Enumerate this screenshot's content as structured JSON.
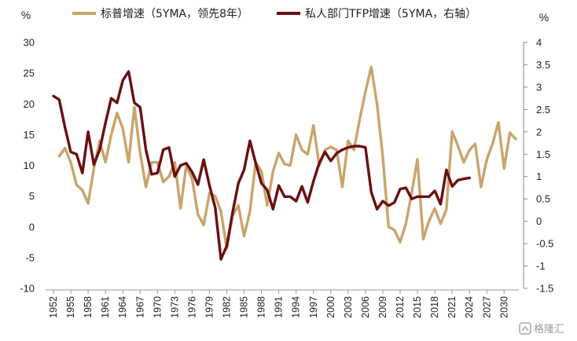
{
  "chart_data": {
    "type": "line",
    "left_axis": {
      "unit": "%",
      "ylim": [
        -10,
        30
      ],
      "ticks": [
        30,
        25,
        20,
        15,
        10,
        5,
        0,
        -5,
        -10
      ]
    },
    "right_axis": {
      "unit": "%",
      "ylim": [
        -1.5,
        4
      ],
      "ticks": [
        4,
        3.5,
        3,
        2.5,
        2,
        1.5,
        1,
        0.5,
        0,
        -0.5,
        -1,
        -1.5
      ],
      "tick_labels": [
        "4",
        "3.5",
        "3",
        "2.5",
        "2",
        "1.5",
        "1",
        "0.5",
        "0",
        "-0.5",
        "-1",
        "-1.5"
      ]
    },
    "xlim": [
      1952,
      2032
    ],
    "x_ticks": [
      1952,
      1955,
      1958,
      1961,
      1964,
      1967,
      1970,
      1973,
      1976,
      1979,
      1982,
      1985,
      1988,
      1991,
      1994,
      1997,
      2000,
      2003,
      2006,
      2009,
      2012,
      2015,
      2018,
      2021,
      2024,
      2027,
      2030
    ],
    "legend_position": "top",
    "grid": false,
    "series": [
      {
        "name": "标普增速（5YMA，领先8年）",
        "axis": "left",
        "color": "#C9A46B",
        "points": [
          [
            1953,
            11.5
          ],
          [
            1954,
            12.8
          ],
          [
            1955,
            10.5
          ],
          [
            1956,
            6.8
          ],
          [
            1957,
            6.0
          ],
          [
            1958,
            3.8
          ],
          [
            1959,
            9.5
          ],
          [
            1960,
            14.0
          ],
          [
            1961,
            10.5
          ],
          [
            1962,
            15.0
          ],
          [
            1963,
            18.5
          ],
          [
            1964,
            16.0
          ],
          [
            1965,
            10.5
          ],
          [
            1966,
            19.5
          ],
          [
            1967,
            12.0
          ],
          [
            1968,
            6.5
          ],
          [
            1969,
            10.5
          ],
          [
            1970,
            10.5
          ],
          [
            1971,
            7.3
          ],
          [
            1972,
            8.2
          ],
          [
            1973,
            10.5
          ],
          [
            1974,
            3.0
          ],
          [
            1975,
            10.0
          ],
          [
            1976,
            7.8
          ],
          [
            1977,
            2.0
          ],
          [
            1978,
            0.3
          ],
          [
            1979,
            5.5
          ],
          [
            1980,
            5.0
          ],
          [
            1981,
            2.5
          ],
          [
            1982,
            -3.5
          ],
          [
            1983,
            1.8
          ],
          [
            1984,
            3.5
          ],
          [
            1985,
            -1.5
          ],
          [
            1986,
            2.5
          ],
          [
            1987,
            10.5
          ],
          [
            1988,
            9.0
          ],
          [
            1989,
            3.5
          ],
          [
            1990,
            9.0
          ],
          [
            1991,
            12.0
          ],
          [
            1992,
            10.2
          ],
          [
            1993,
            10.0
          ],
          [
            1994,
            15.0
          ],
          [
            1995,
            12.5
          ],
          [
            1996,
            11.8
          ],
          [
            1997,
            16.5
          ],
          [
            1998,
            10.0
          ],
          [
            1999,
            12.5
          ],
          [
            2000,
            13.0
          ],
          [
            2001,
            12.5
          ],
          [
            2002,
            6.5
          ],
          [
            2003,
            14.0
          ],
          [
            2004,
            12.5
          ],
          [
            2005,
            17.5
          ],
          [
            2006,
            22.0
          ],
          [
            2007,
            26.0
          ],
          [
            2008,
            20.0
          ],
          [
            2009,
            11.5
          ],
          [
            2010,
            0.0
          ],
          [
            2011,
            -0.5
          ],
          [
            2012,
            -2.5
          ],
          [
            2013,
            0.5
          ],
          [
            2014,
            5.5
          ],
          [
            2015,
            11.0
          ],
          [
            2016,
            -2.0
          ],
          [
            2017,
            1.0
          ],
          [
            2018,
            3.0
          ],
          [
            2019,
            0.5
          ],
          [
            2020,
            2.8
          ],
          [
            2021,
            15.5
          ],
          [
            2022,
            13.2
          ],
          [
            2023,
            10.5
          ],
          [
            2024,
            12.5
          ],
          [
            2025,
            13.5
          ],
          [
            2026,
            6.5
          ],
          [
            2027,
            11.0
          ],
          [
            2028,
            13.5
          ],
          [
            2029,
            17.0
          ],
          [
            2030,
            9.5
          ],
          [
            2031,
            15.3
          ],
          [
            2032,
            14.3
          ]
        ]
      },
      {
        "name": "私人部门TFP增速（5YMA，右轴）",
        "axis": "right",
        "color": "#6B0E10",
        "points": [
          [
            1952,
            2.8
          ],
          [
            1953,
            2.72
          ],
          [
            1954,
            2.1
          ],
          [
            1955,
            1.55
          ],
          [
            1956,
            1.5
          ],
          [
            1957,
            1.08
          ],
          [
            1958,
            2.0
          ],
          [
            1959,
            1.27
          ],
          [
            1960,
            1.6
          ],
          [
            1961,
            2.2
          ],
          [
            1962,
            2.75
          ],
          [
            1963,
            2.65
          ],
          [
            1964,
            3.15
          ],
          [
            1965,
            3.35
          ],
          [
            1966,
            2.65
          ],
          [
            1967,
            2.55
          ],
          [
            1968,
            1.6
          ],
          [
            1969,
            1.05
          ],
          [
            1970,
            1.08
          ],
          [
            1971,
            1.6
          ],
          [
            1972,
            1.65
          ],
          [
            1973,
            1.0
          ],
          [
            1974,
            1.25
          ],
          [
            1975,
            1.3
          ],
          [
            1976,
            1.1
          ],
          [
            1977,
            0.82
          ],
          [
            1978,
            1.38
          ],
          [
            1979,
            0.8
          ],
          [
            1980,
            0.3
          ],
          [
            1981,
            -0.85
          ],
          [
            1982,
            -0.55
          ],
          [
            1983,
            0.2
          ],
          [
            1984,
            0.85
          ],
          [
            1985,
            1.15
          ],
          [
            1986,
            1.8
          ],
          [
            1987,
            1.3
          ],
          [
            1988,
            0.85
          ],
          [
            1989,
            0.7
          ],
          [
            1990,
            0.27
          ],
          [
            1991,
            0.8
          ],
          [
            1992,
            0.55
          ],
          [
            1993,
            0.55
          ],
          [
            1994,
            0.45
          ],
          [
            1995,
            0.78
          ],
          [
            1996,
            0.42
          ],
          [
            1997,
            0.9
          ],
          [
            1998,
            1.3
          ],
          [
            1999,
            1.55
          ],
          [
            2000,
            1.35
          ],
          [
            2001,
            1.52
          ],
          [
            2002,
            1.6
          ],
          [
            2003,
            1.65
          ],
          [
            2004,
            1.68
          ],
          [
            2005,
            1.68
          ],
          [
            2006,
            1.65
          ],
          [
            2007,
            0.65
          ],
          [
            2008,
            0.27
          ],
          [
            2009,
            0.45
          ],
          [
            2010,
            0.35
          ],
          [
            2011,
            0.42
          ],
          [
            2012,
            0.72
          ],
          [
            2013,
            0.75
          ],
          [
            2014,
            0.5
          ],
          [
            2015,
            0.55
          ],
          [
            2016,
            0.55
          ],
          [
            2017,
            0.55
          ],
          [
            2018,
            0.68
          ],
          [
            2019,
            0.38
          ],
          [
            2020,
            1.15
          ],
          [
            2021,
            0.78
          ],
          [
            2022,
            0.92
          ],
          [
            2023,
            0.95
          ],
          [
            2024,
            0.97
          ]
        ]
      }
    ]
  },
  "watermark": {
    "text": "格隆汇"
  }
}
